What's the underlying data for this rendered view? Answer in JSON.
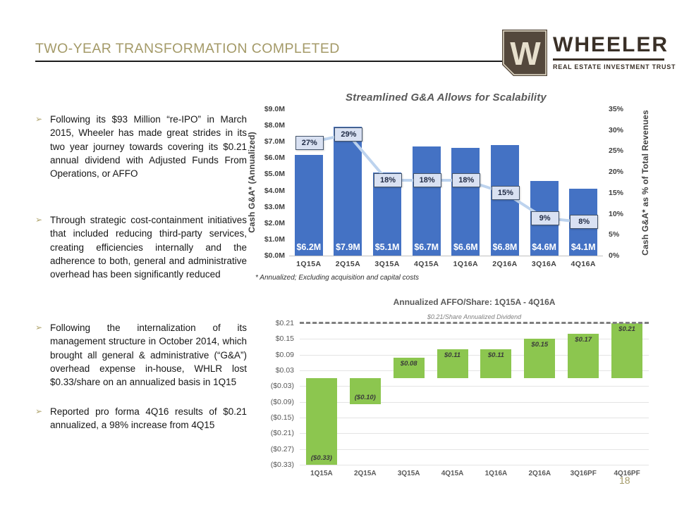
{
  "slide": {
    "title": "TWO-YEAR TRANSFORMATION COMPLETED",
    "page_number": "18",
    "bullet_glyph": "➢"
  },
  "logo": {
    "mark_letter": "W",
    "name": "WHEELER",
    "tagline": "REAL ESTATE INVESTMENT TRUST"
  },
  "bullets": [
    "Following its $93 Million “re-IPO” in March 2015, Wheeler has made great strides in its two year journey towards covering its $0.21 annual dividend with Adjusted Funds From Operations, or AFFO",
    "Through strategic cost-containment initiatives that included reducing third-party services, creating efficiencies internally and the adherence to both, general and administrative overhead has been significantly reduced",
    "Following the internalization of its management structure in October 2014, which brought all general & administrative (“G&A”) overhead expense in-house, WHLR lost $0.33/share on an annualized basis in 1Q15",
    "Reported pro forma 4Q16 results of $0.21 annualized, a 98% increase from 4Q15"
  ],
  "colors": {
    "accent_gold": "#A49A68",
    "bar_blue": "#4472C4",
    "line_light_blue": "#BDD3EE",
    "pct_box_fill": "#D9E1F2",
    "pct_box_border": "#44546A",
    "bar_green": "#8CC64F",
    "title_gray": "#595959",
    "logo_brown": "#54483C",
    "logo_cream": "#E7DFCC",
    "dashed_gray": "#7F7F7F"
  },
  "chart_data": [
    {
      "type": "bar",
      "title": "Streamlined G&A Allows for Scalability",
      "categories": [
        "1Q15A",
        "2Q15A",
        "3Q15A",
        "4Q15A",
        "1Q16A",
        "2Q16A",
        "3Q16A",
        "4Q16A"
      ],
      "series": [
        {
          "name": "Cash G&A (Annualized)",
          "type": "bar",
          "axis": "left",
          "values": [
            6.2,
            7.9,
            5.1,
            6.7,
            6.6,
            6.8,
            4.6,
            4.1
          ],
          "labels": [
            "$6.2M",
            "$7.9M",
            "$5.1M",
            "$6.7M",
            "$6.6M",
            "$6.8M",
            "$4.6M",
            "$4.1M"
          ],
          "color": "#4472C4"
        },
        {
          "name": "Cash G&A as % of Total Revenues",
          "type": "line",
          "axis": "right",
          "values": [
            27,
            29,
            18,
            18,
            18,
            15,
            9,
            8
          ],
          "labels": [
            "27%",
            "29%",
            "18%",
            "18%",
            "18%",
            "15%",
            "9%",
            "8%"
          ],
          "color": "#BDD3EE"
        }
      ],
      "left_axis": {
        "title": "Cash G&A* (Annualized)",
        "min": 0,
        "max": 9,
        "tick_step": 1,
        "tick_labels": [
          "$0.0M",
          "$1.0M",
          "$2.0M",
          "$3.0M",
          "$4.0M",
          "$5.0M",
          "$6.0M",
          "$7.0M",
          "$8.0M",
          "$9.0M"
        ]
      },
      "right_axis": {
        "title": "Cash G&A* as % of Total Revenues",
        "min": 0,
        "max": 35,
        "tick_step": 5,
        "tick_labels": [
          "0%",
          "5%",
          "10%",
          "15%",
          "20%",
          "25%",
          "30%",
          "35%"
        ]
      },
      "footnote": "* Annualized; Excluding acquisition and capital costs",
      "grid": false,
      "legend": "none"
    },
    {
      "type": "bar",
      "title": "Annualized AFFO/Share:  1Q15A - 4Q16A",
      "categories": [
        "1Q15A",
        "2Q15A",
        "3Q15A",
        "4Q15A",
        "1Q16A",
        "2Q16A",
        "3Q16PF",
        "4Q16PF"
      ],
      "values": [
        -0.33,
        -0.1,
        0.08,
        0.11,
        0.11,
        0.15,
        0.17,
        0.21
      ],
      "labels": [
        "($0.33)",
        "($0.10)",
        "$0.08",
        "$0.11",
        "$0.11",
        "$0.15",
        "$0.17",
        "$0.21"
      ],
      "bar_color": "#8CC64F",
      "yticks": [
        0.21,
        0.15,
        0.09,
        0.03,
        -0.03,
        -0.09,
        -0.15,
        -0.21,
        -0.27,
        -0.33
      ],
      "ytick_labels": [
        "$0.21",
        "$0.15",
        "$0.09",
        "$0.03",
        "($0.03)",
        "($0.09)",
        "($0.15)",
        "($0.21)",
        "($0.27)",
        "($0.33)"
      ],
      "ylim": [
        -0.33,
        0.24
      ],
      "reference_line": {
        "value": 0.21,
        "label": "$0.21/Share Annualized Dividend",
        "style": "dashed",
        "color": "#7F7F7F"
      },
      "grid": true,
      "legend": "none"
    }
  ]
}
